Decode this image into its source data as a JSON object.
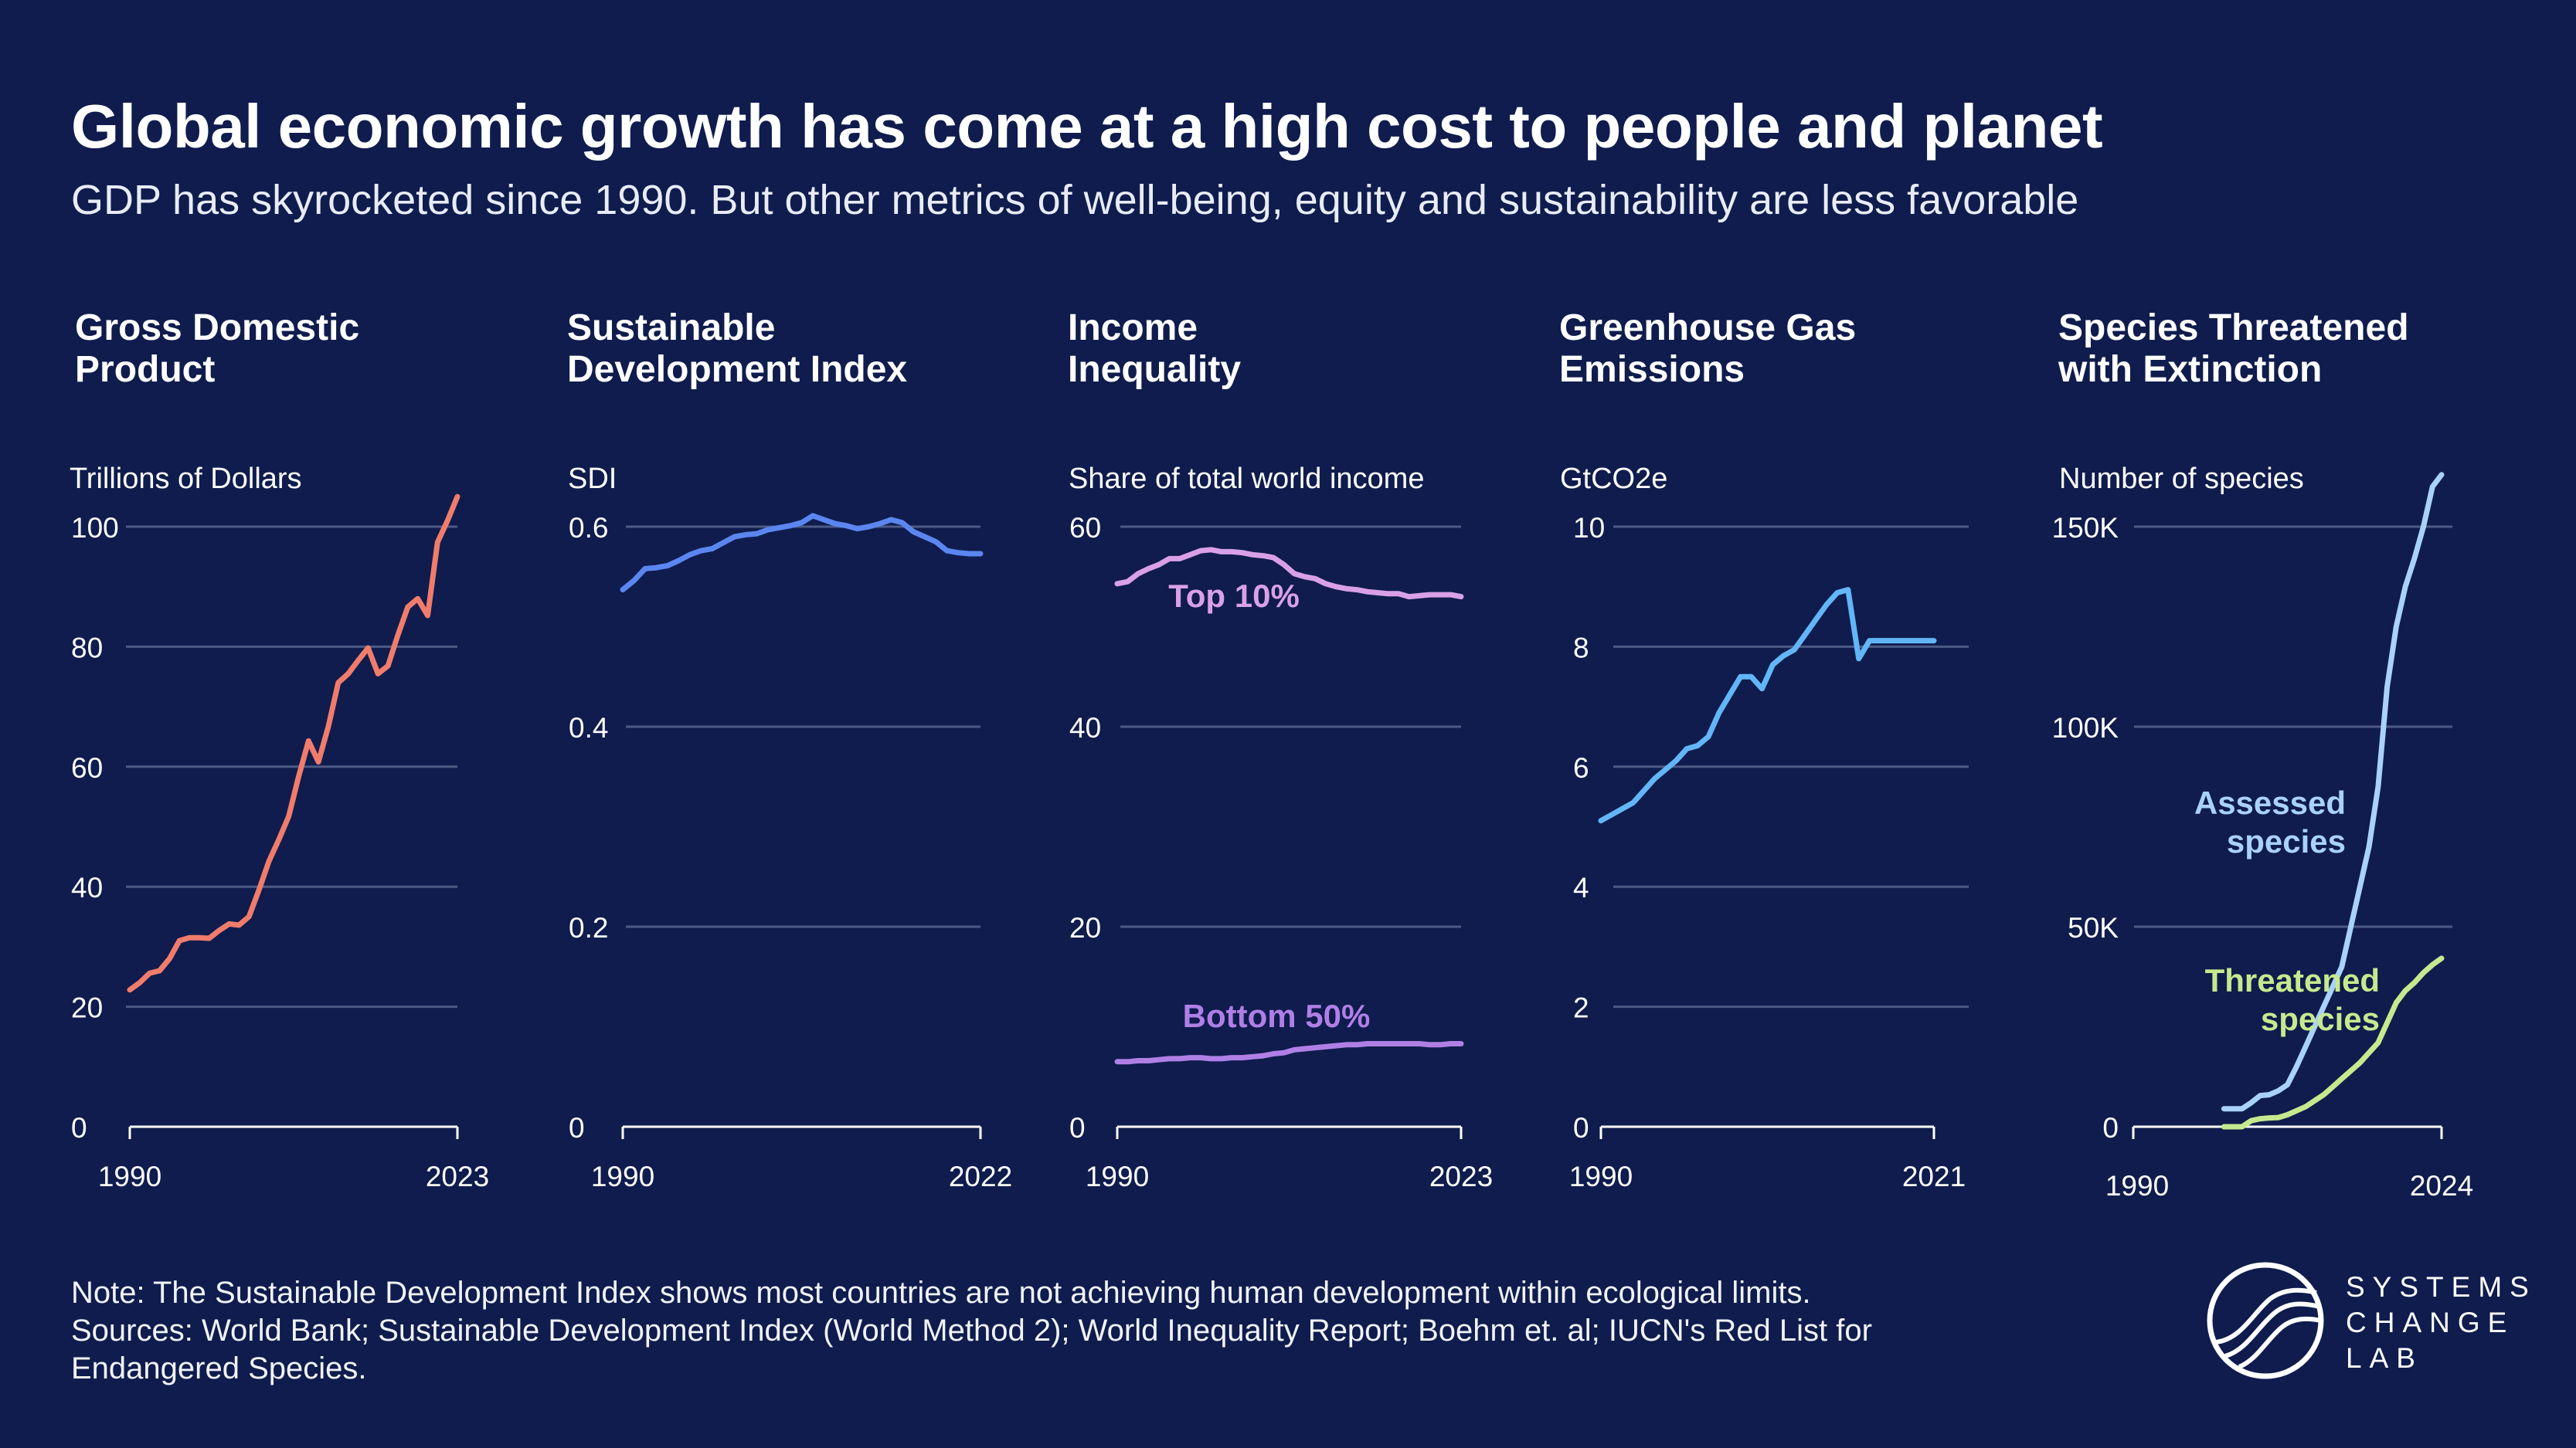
{
  "title": "Global economic growth has come at a high cost to people and planet",
  "subtitle": "GDP has skyrocketed since 1990. But other metrics of well-being, equity and sustainability are less favorable",
  "note": "Note: The Sustainable Development Index shows most countries are not achieving human development within ecological limits.\nSources: World Bank; Sustainable Development Index (World Method 2); World Inequality Report; Boehm et. al; IUCN's Red List for\nEndangered Species.",
  "logo": {
    "text": "SYSTEMS\nCHANGE\nLAB"
  },
  "colors": {
    "background": "#0f1c4d",
    "gdp": "#f07c6c",
    "sdi": "#5b86f0",
    "top10": "#d9a0e8",
    "bottom50": "#b07fe6",
    "ghg": "#62b6f7",
    "assessed": "#a9d2fb",
    "threatened": "#c5ea8e",
    "grid": "#4d5a85",
    "axis": "#ffffff"
  },
  "chart_data": [
    {
      "id": "gdp",
      "type": "line",
      "title": "Gross Domestic\nProduct",
      "ylabel": "Trillions of Dollars",
      "ylim": [
        0,
        100
      ],
      "yticks": [
        0,
        20,
        40,
        60,
        80,
        100
      ],
      "ytick_labels": [
        "0",
        "20",
        "40",
        "60",
        "80",
        "100"
      ],
      "xlim": [
        1990,
        2023
      ],
      "xtick_labels": [
        "1990",
        "2023"
      ],
      "series": [
        {
          "name": "GDP",
          "color": "#f07c6c",
          "x": [
            1990,
            1991,
            1992,
            1993,
            1994,
            1995,
            1996,
            1997,
            1998,
            1999,
            2000,
            2001,
            2002,
            2003,
            2004,
            2005,
            2006,
            2007,
            2008,
            2009,
            2010,
            2011,
            2012,
            2013,
            2014,
            2015,
            2016,
            2017,
            2018,
            2019,
            2020,
            2021,
            2022,
            2023
          ],
          "values": [
            22.8,
            24.0,
            25.6,
            26.0,
            28.0,
            31.0,
            31.5,
            31.5,
            31.4,
            32.7,
            33.8,
            33.6,
            35.0,
            39.4,
            44.2,
            47.8,
            51.7,
            58.3,
            64.3,
            60.8,
            66.7,
            74.0,
            75.5,
            77.7,
            79.8,
            75.5,
            76.8,
            81.9,
            86.6,
            88.0,
            85.2,
            97.4,
            101.0,
            105.0
          ]
        }
      ]
    },
    {
      "id": "sdi",
      "type": "line",
      "title": "Sustainable\nDevelopment Index",
      "ylabel": "SDI",
      "ylim": [
        0,
        0.6
      ],
      "yticks": [
        0,
        0.2,
        0.4,
        0.6
      ],
      "ytick_labels": [
        "0",
        "0.2",
        "0.4",
        "0.6"
      ],
      "xlim": [
        1990,
        2022
      ],
      "xtick_labels": [
        "1990",
        "2022"
      ],
      "series": [
        {
          "name": "SDI",
          "color": "#5b86f0",
          "x": [
            1990,
            1991,
            1992,
            1993,
            1994,
            1995,
            1996,
            1997,
            1998,
            1999,
            2000,
            2001,
            2002,
            2003,
            2004,
            2005,
            2006,
            2007,
            2008,
            2009,
            2010,
            2011,
            2012,
            2013,
            2014,
            2015,
            2016,
            2017,
            2018,
            2019,
            2020,
            2021,
            2022
          ],
          "values": [
            0.537,
            0.546,
            0.558,
            0.559,
            0.561,
            0.566,
            0.572,
            0.576,
            0.578,
            0.584,
            0.59,
            0.592,
            0.593,
            0.597,
            0.599,
            0.601,
            0.604,
            0.611,
            0.607,
            0.603,
            0.601,
            0.598,
            0.6,
            0.603,
            0.607,
            0.604,
            0.595,
            0.59,
            0.585,
            0.576,
            0.574,
            0.573,
            0.573
          ]
        }
      ]
    },
    {
      "id": "inequality",
      "type": "line",
      "title": "Income\nInequality",
      "ylabel": "Share of total world income",
      "ylim": [
        0,
        60
      ],
      "yticks": [
        0,
        20,
        40,
        60
      ],
      "ytick_labels": [
        "0",
        "20",
        "40",
        "60"
      ],
      "xlim": [
        1990,
        2023
      ],
      "xtick_labels": [
        "1990",
        "2023"
      ],
      "series": [
        {
          "name": "Top 10%",
          "color": "#d9a0e8",
          "x": [
            1990,
            1991,
            1992,
            1993,
            1994,
            1995,
            1996,
            1997,
            1998,
            1999,
            2000,
            2001,
            2002,
            2003,
            2004,
            2005,
            2006,
            2007,
            2008,
            2009,
            2010,
            2011,
            2012,
            2013,
            2014,
            2015,
            2016,
            2017,
            2018,
            2019,
            2020,
            2021,
            2022,
            2023
          ],
          "values": [
            54.3,
            54.5,
            55.3,
            55.8,
            56.2,
            56.8,
            56.8,
            57.2,
            57.6,
            57.7,
            57.5,
            57.5,
            57.4,
            57.2,
            57.1,
            56.9,
            56.2,
            55.3,
            55.0,
            54.8,
            54.3,
            54.0,
            53.8,
            53.7,
            53.5,
            53.4,
            53.3,
            53.3,
            53.0,
            53.1,
            53.2,
            53.2,
            53.2,
            53.0
          ]
        },
        {
          "name": "Bottom 50%",
          "color": "#b07fe6",
          "x": [
            1990,
            1991,
            1992,
            1993,
            1994,
            1995,
            1996,
            1997,
            1998,
            1999,
            2000,
            2001,
            2002,
            2003,
            2004,
            2005,
            2006,
            2007,
            2008,
            2009,
            2010,
            2011,
            2012,
            2013,
            2014,
            2015,
            2016,
            2017,
            2018,
            2019,
            2020,
            2021,
            2022,
            2023
          ],
          "values": [
            6.5,
            6.5,
            6.6,
            6.6,
            6.7,
            6.8,
            6.8,
            6.9,
            6.9,
            6.8,
            6.8,
            6.9,
            6.9,
            7.0,
            7.1,
            7.3,
            7.4,
            7.7,
            7.8,
            7.9,
            8.0,
            8.1,
            8.2,
            8.2,
            8.3,
            8.3,
            8.3,
            8.3,
            8.3,
            8.3,
            8.2,
            8.2,
            8.3,
            8.3
          ]
        }
      ]
    },
    {
      "id": "ghg",
      "type": "line",
      "title": "Greenhouse Gas\nEmissions",
      "ylabel": "GtCO2e",
      "ylim": [
        0,
        10
      ],
      "yticks": [
        0,
        2,
        4,
        6,
        8,
        10
      ],
      "ytick_labels": [
        "0",
        "2",
        "4",
        "6",
        "8",
        "10"
      ],
      "xlim": [
        1990,
        2021
      ],
      "xtick_labels": [
        "1990",
        "2021"
      ],
      "series": [
        {
          "name": "GHG emissions",
          "color": "#62b6f7",
          "x": [
            1990,
            1991,
            1992,
            1993,
            1994,
            1995,
            1996,
            1997,
            1998,
            1999,
            2000,
            2001,
            2002,
            2003,
            2004,
            2005,
            2006,
            2007,
            2008,
            2009,
            2010,
            2011,
            2012,
            2013,
            2014,
            2015,
            2016,
            2017,
            2018,
            2019,
            2020,
            2021
          ],
          "values": [
            5.1,
            5.2,
            5.3,
            5.4,
            5.6,
            5.8,
            5.95,
            6.1,
            6.3,
            6.35,
            6.5,
            6.9,
            7.2,
            7.5,
            7.5,
            7.3,
            7.7,
            7.85,
            7.95,
            8.2,
            8.45,
            8.7,
            8.9,
            8.95,
            7.8,
            8.1,
            8.1,
            8.1,
            8.1,
            8.1,
            8.1,
            8.1
          ]
        }
      ]
    },
    {
      "id": "species",
      "type": "line",
      "title": "Species Threatened\nwith Extinction",
      "ylabel": "Number of species",
      "ylim": [
        0,
        150000
      ],
      "yticks": [
        0,
        50000,
        100000,
        150000
      ],
      "ytick_labels": [
        "0",
        "50K",
        "100K",
        "150K"
      ],
      "xlim": [
        1990,
        2024
      ],
      "xtick_labels": [
        "1990",
        "2024"
      ],
      "series": [
        {
          "name": "Assessed species",
          "label_lines": [
            "Assessed",
            "species"
          ],
          "color": "#a9d2fb",
          "x": [
            2000,
            2002,
            2003,
            2004,
            2005,
            2006,
            2007,
            2008,
            2009,
            2010,
            2011,
            2012,
            2013,
            2014,
            2015,
            2016,
            2017,
            2018,
            2019,
            2020,
            2021,
            2022,
            2023,
            2024
          ],
          "values": [
            4500,
            4500,
            6000,
            7800,
            8000,
            9000,
            10500,
            15000,
            20000,
            25000,
            30000,
            35000,
            40000,
            50000,
            60000,
            70000,
            85000,
            110000,
            125000,
            135000,
            142000,
            150000,
            160000,
            163000
          ]
        },
        {
          "name": "Threatened species",
          "label_lines": [
            "Threatened",
            "species"
          ],
          "color": "#c5ea8e",
          "x": [
            2000,
            2002,
            2003,
            2004,
            2005,
            2006,
            2007,
            2008,
            2009,
            2010,
            2011,
            2012,
            2013,
            2014,
            2015,
            2016,
            2017,
            2018,
            2019,
            2020,
            2021,
            2022,
            2023,
            2024
          ],
          "values": [
            0,
            0,
            1500,
            2000,
            2200,
            2300,
            3000,
            4000,
            5000,
            6500,
            8000,
            10000,
            12000,
            14000,
            16000,
            18500,
            21000,
            26000,
            31000,
            34000,
            36000,
            38500,
            40500,
            42100
          ]
        }
      ]
    }
  ]
}
